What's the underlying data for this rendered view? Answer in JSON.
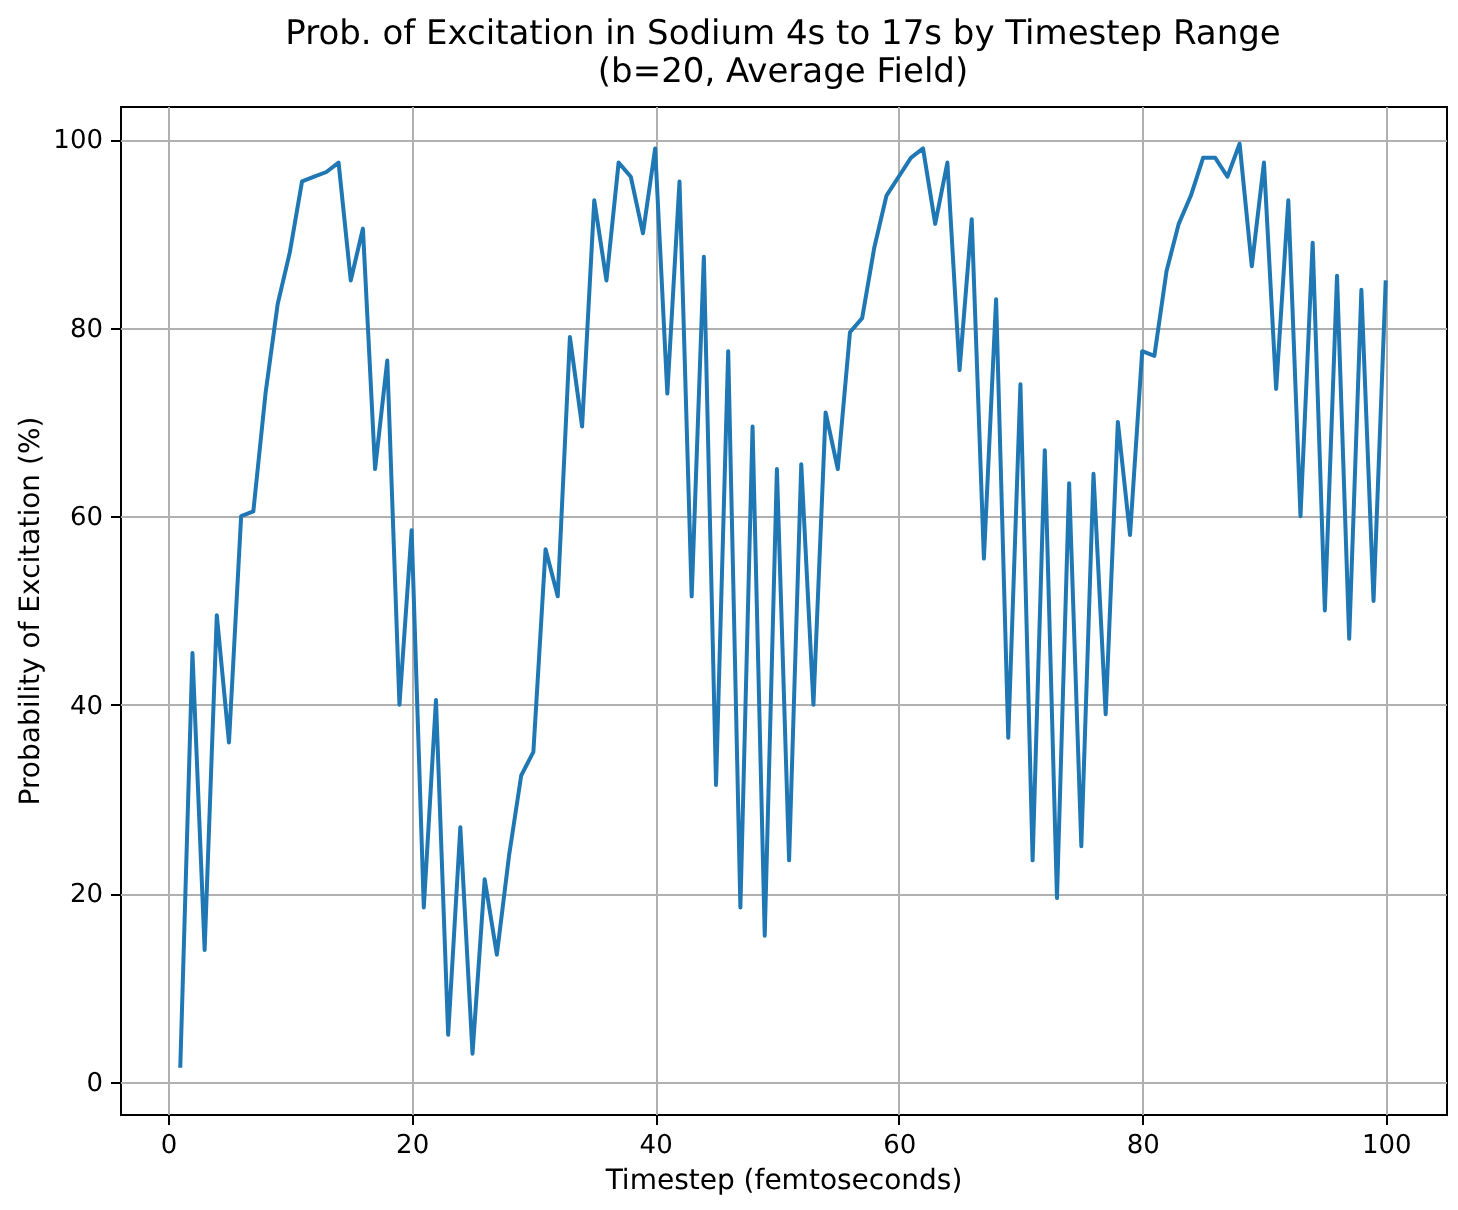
{
  "chart_data": {
    "type": "line",
    "title": "Prob. of Excitation in Sodium 4s to 17s by Timestep Range\n(b=20, Average Field)",
    "xlabel": "Timestep (femtoseconds)",
    "ylabel": "Probability of Excitation (%)",
    "x": [
      1,
      2,
      3,
      4,
      5,
      6,
      7,
      8,
      9,
      10,
      11,
      12,
      13,
      14,
      15,
      16,
      17,
      18,
      19,
      20,
      21,
      22,
      23,
      24,
      25,
      26,
      27,
      28,
      29,
      30,
      31,
      32,
      33,
      34,
      35,
      36,
      37,
      38,
      39,
      40,
      41,
      42,
      43,
      44,
      45,
      46,
      47,
      48,
      49,
      50,
      51,
      52,
      53,
      54,
      55,
      56,
      57,
      58,
      59,
      60,
      61,
      62,
      63,
      64,
      65,
      66,
      67,
      68,
      69,
      70,
      71,
      72,
      73,
      74,
      75,
      76,
      77,
      78,
      79,
      80,
      81,
      82,
      83,
      84,
      85,
      86,
      87,
      88,
      89,
      90,
      91,
      92,
      93,
      94,
      95,
      96,
      97,
      98,
      99,
      100
    ],
    "series": [
      {
        "color": "#1f77b4",
        "values": [
          1.5,
          45.5,
          14,
          49.5,
          36,
          60,
          60.5,
          73,
          82.5,
          88,
          95.5,
          96,
          96.5,
          97.5,
          85,
          90.5,
          65,
          76.5,
          40,
          58.5,
          18.5,
          40.5,
          5,
          27,
          3,
          21.5,
          13.5,
          24,
          32.5,
          35,
          56.5,
          51.5,
          79,
          69.5,
          93.5,
          85,
          97.5,
          96,
          90,
          99,
          73,
          95.5,
          51.5,
          87.5,
          31.5,
          77.5,
          18.5,
          69.5,
          15.5,
          65,
          23.5,
          65.5,
          40,
          71,
          65,
          79.5,
          81,
          88.5,
          94,
          96,
          98,
          99,
          91,
          97.5,
          75.5,
          91.5,
          55.5,
          83,
          36.5,
          74,
          23.5,
          67,
          19.5,
          63.5,
          25,
          64.5,
          39,
          70,
          58,
          77.5,
          77,
          86,
          91,
          94,
          98,
          98,
          96,
          99.5,
          86.5,
          97.5,
          73.5,
          93.5,
          60,
          89,
          50,
          85.5,
          47,
          84,
          51,
          85
        ]
      }
    ],
    "xlim": [
      -3.95,
      104.95
    ],
    "ylim": [
      -3.4,
      103.5
    ],
    "xticks": [
      0,
      20,
      40,
      60,
      80,
      100
    ],
    "yticks": [
      0,
      20,
      40,
      60,
      80,
      100
    ],
    "grid": true,
    "line_style": "solid",
    "marker": "none"
  }
}
